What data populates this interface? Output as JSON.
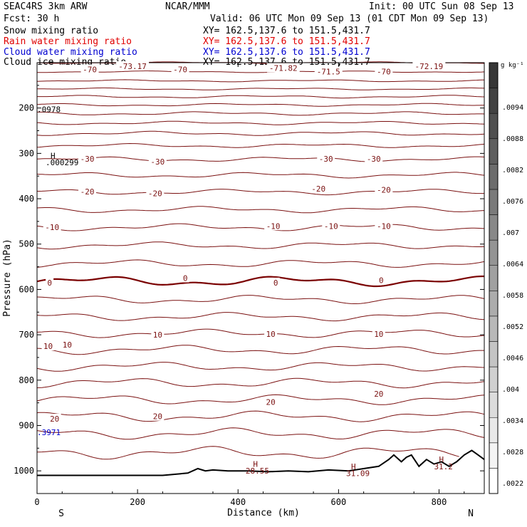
{
  "header": {
    "model": "SEAC4RS  3km ARW",
    "org": "NCAR/MMM",
    "init": "Init: 00 UTC Sun 08 Sep 13",
    "fcst": "Fcst:   30 h",
    "valid": "Valid: 06 UTC Mon 09 Sep 13 (01 CDT Mon 09 Sep 13)"
  },
  "legend": [
    {
      "label": "Snow mixing ratio",
      "xy": "XY= 162.5,137.6 to 151.5,431.7",
      "color": "#000000"
    },
    {
      "label": "Rain water mixing ratio",
      "xy": "XY= 162.5,137.6 to 151.5,431.7",
      "color": "#e00000"
    },
    {
      "label": "Cloud water mixing ratio",
      "xy": "XY= 162.5,137.6 to 151.5,431.7",
      "color": "#0000d0"
    },
    {
      "label": "Cloud ice mixing ratio",
      "xy": "XY= 162.5,137.6 to 151.5,431.7",
      "color": "#000000"
    }
  ],
  "colorbar": {
    "unit": "g kg⁻¹",
    "ticks": [
      ".0094",
      ".0088",
      ".0082",
      ".0076",
      ".007",
      ".0064",
      ".0058",
      ".0052",
      ".0046",
      ".004",
      ".0034",
      ".0028",
      ".0022"
    ],
    "colors": [
      "#ffffff",
      "#f4f4f4",
      "#e9e9e9",
      "#dcdcdc",
      "#d0d0d0",
      "#c4c4c4",
      "#b8b8b8",
      "#acacac",
      "#a0a0a0",
      "#949494",
      "#888888",
      "#7a7a7a",
      "#6c6c6c",
      "#5e5e5e",
      "#505050",
      "#424242",
      "#363636"
    ]
  },
  "chart_data": {
    "type": "line",
    "title": "",
    "xlabel": "Distance (km)",
    "ylabel": "Pressure (hPa)",
    "xlim": [
      0,
      890
    ],
    "ylim": [
      1050,
      100
    ],
    "x_ticks": [
      "0",
      "200",
      "400",
      "600",
      "800"
    ],
    "x_tick_values": [
      0,
      200,
      400,
      600,
      800
    ],
    "y_ticks": [
      "200",
      "300",
      "400",
      "500",
      "600",
      "700",
      "800",
      "900",
      "1000"
    ],
    "y_tick_values": [
      200,
      300,
      400,
      500,
      600,
      700,
      800,
      900,
      1000
    ],
    "endpoints": {
      "left": "S",
      "right": "N"
    },
    "line_color": "#7a1010",
    "zero_line_color": "#7a0000",
    "isotherms": [
      {
        "base": 100,
        "amp": 1.2
      },
      {
        "base": 120,
        "amp": 1.2
      },
      {
        "base": 140,
        "amp": 1.5
      },
      {
        "base": 158,
        "amp": 1.5
      },
      {
        "base": 175,
        "amp": 2
      },
      {
        "base": 193,
        "amp": 2
      },
      {
        "base": 212,
        "amp": 2.5
      },
      {
        "base": 233,
        "amp": 2.5
      },
      {
        "base": 256,
        "amp": 3
      },
      {
        "base": 283,
        "amp": 3
      },
      {
        "base": 313,
        "amp": 3.5
      },
      {
        "base": 348,
        "amp": 4
      },
      {
        "base": 385,
        "amp": 4
      },
      {
        "base": 424,
        "amp": 4.5
      },
      {
        "base": 463,
        "amp": 5
      },
      {
        "base": 503,
        "amp": 5
      },
      {
        "base": 543,
        "amp": 5.5
      },
      {
        "base": 582,
        "amp": 7,
        "bold": true
      },
      {
        "base": 622,
        "amp": 6
      },
      {
        "base": 660,
        "amp": 6
      },
      {
        "base": 697,
        "amp": 6
      },
      {
        "base": 733,
        "amp": 6.5
      },
      {
        "base": 770,
        "amp": 6.5
      },
      {
        "base": 806,
        "amp": 7
      },
      {
        "base": 843,
        "amp": 7
      },
      {
        "base": 880,
        "amp": 7.5
      },
      {
        "base": 918,
        "amp": 8
      },
      {
        "base": 960,
        "amp": 9
      }
    ],
    "contour_labels": [
      {
        "text": "-70",
        "x": 105,
        "p": 115
      },
      {
        "text": "-73.17",
        "x": 190,
        "p": 108
      },
      {
        "text": "-70",
        "x": 285,
        "p": 115
      },
      {
        "text": "-71.82",
        "x": 490,
        "p": 112
      },
      {
        "text": "-71.5",
        "x": 580,
        "p": 120
      },
      {
        "text": "-70",
        "x": 690,
        "p": 120
      },
      {
        "text": "-72.19",
        "x": 780,
        "p": 108
      },
      {
        "text": "-30",
        "x": 100,
        "p": 312
      },
      {
        "text": "-30",
        "x": 240,
        "p": 318
      },
      {
        "text": "-30",
        "x": 575,
        "p": 312
      },
      {
        "text": "-30",
        "x": 670,
        "p": 312
      },
      {
        "text": "-20",
        "x": 100,
        "p": 384
      },
      {
        "text": "-20",
        "x": 235,
        "p": 388
      },
      {
        "text": "-20",
        "x": 560,
        "p": 378
      },
      {
        "text": "-20",
        "x": 690,
        "p": 380
      },
      {
        "text": "-10",
        "x": 30,
        "p": 463
      },
      {
        "text": "-10",
        "x": 470,
        "p": 460
      },
      {
        "text": "-10",
        "x": 585,
        "p": 460
      },
      {
        "text": "-10",
        "x": 690,
        "p": 460
      },
      {
        "text": "0",
        "x": 25,
        "p": 585
      },
      {
        "text": "0",
        "x": 295,
        "p": 575
      },
      {
        "text": "0",
        "x": 475,
        "p": 585
      },
      {
        "text": "0",
        "x": 685,
        "p": 580
      },
      {
        "text": "10",
        "x": 22,
        "p": 725
      },
      {
        "text": "10",
        "x": 60,
        "p": 722
      },
      {
        "text": "10",
        "x": 240,
        "p": 700
      },
      {
        "text": "10",
        "x": 465,
        "p": 698
      },
      {
        "text": "10",
        "x": 680,
        "p": 698
      },
      {
        "text": "20",
        "x": 35,
        "p": 885
      },
      {
        "text": "20",
        "x": 240,
        "p": 880
      },
      {
        "text": "20",
        "x": 465,
        "p": 848
      },
      {
        "text": "20",
        "x": 680,
        "p": 830
      }
    ],
    "high_markers": [
      {
        "text": "H",
        "x": 27,
        "p": 305
      },
      {
        "text": "H",
        "x": 430,
        "p": 985
      },
      {
        "text": "H",
        "x": 625,
        "p": 990
      },
      {
        "text": "H",
        "x": 800,
        "p": 975
      }
    ],
    "extrema_labels": [
      {
        "text": ".0978",
        "x": 0,
        "p": 203,
        "color": "#000000"
      },
      {
        "text": ".000299",
        "x": 17,
        "p": 320,
        "color": "#000000"
      },
      {
        "text": "28.55",
        "x": 415,
        "p": 1000,
        "color": "#7a1010"
      },
      {
        "text": "31.09",
        "x": 615,
        "p": 1005,
        "color": "#7a1010"
      },
      {
        "text": "31.2",
        "x": 790,
        "p": 990,
        "color": "#7a1010"
      },
      {
        "text": ".3971",
        "x": 0,
        "p": 915,
        "color": "#0000d0"
      }
    ],
    "terrain": [
      [
        0,
        1010
      ],
      [
        50,
        1010
      ],
      [
        100,
        1010
      ],
      [
        150,
        1010
      ],
      [
        200,
        1010
      ],
      [
        250,
        1010
      ],
      [
        300,
        1005
      ],
      [
        320,
        995
      ],
      [
        335,
        1000
      ],
      [
        350,
        998
      ],
      [
        380,
        1000
      ],
      [
        420,
        1000
      ],
      [
        460,
        1002
      ],
      [
        500,
        1000
      ],
      [
        540,
        1002
      ],
      [
        580,
        998
      ],
      [
        620,
        1000
      ],
      [
        650,
        995
      ],
      [
        680,
        990
      ],
      [
        700,
        975
      ],
      [
        710,
        965
      ],
      [
        725,
        980
      ],
      [
        735,
        970
      ],
      [
        745,
        965
      ],
      [
        760,
        990
      ],
      [
        775,
        975
      ],
      [
        790,
        985
      ],
      [
        805,
        980
      ],
      [
        820,
        990
      ],
      [
        835,
        980
      ],
      [
        850,
        965
      ],
      [
        865,
        955
      ],
      [
        878,
        965
      ],
      [
        890,
        975
      ]
    ]
  }
}
